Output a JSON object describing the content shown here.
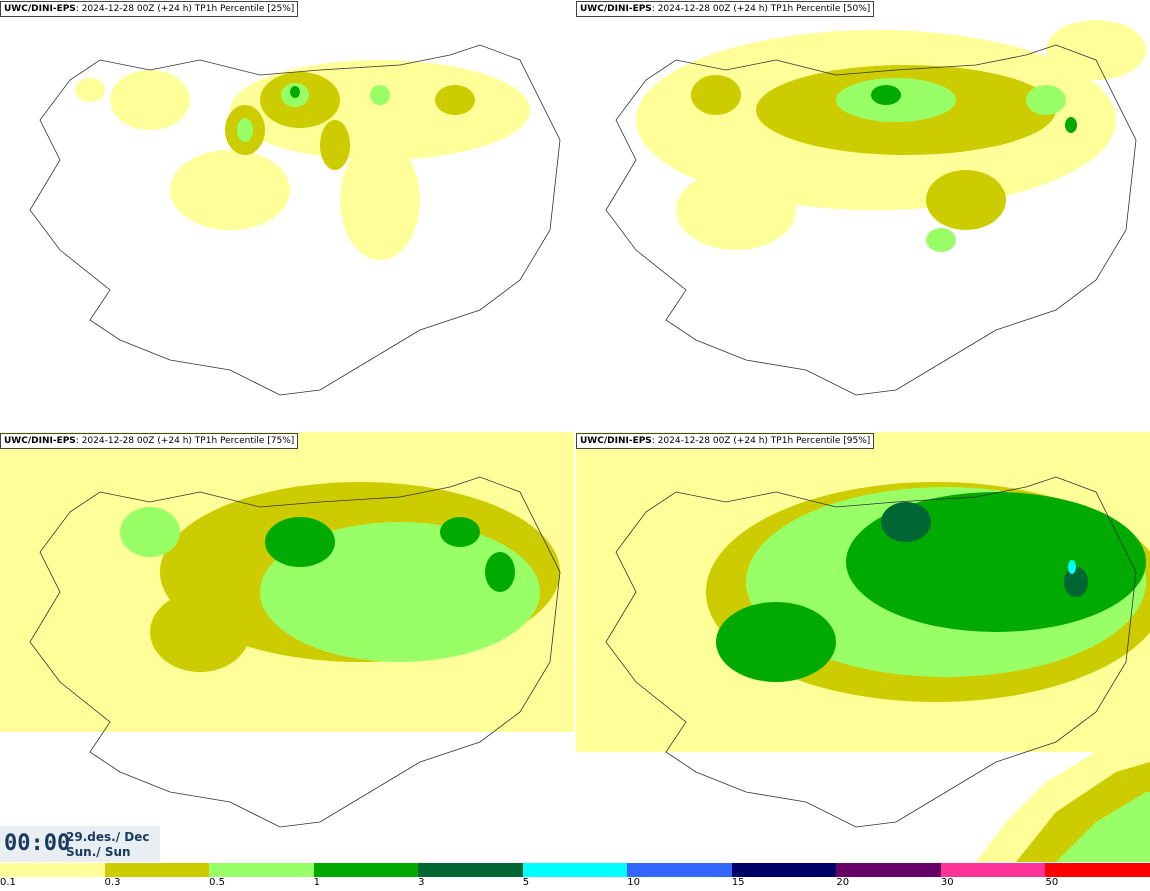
{
  "panels": [
    {
      "model": "UWC/DINI-EPS",
      "meta": ": 2024-12-28 00Z (+24 h)",
      "product": "TP1h Percentile [25%]"
    },
    {
      "model": "UWC/DINI-EPS",
      "meta": ": 2024-12-28 00Z (+24 h)",
      "product": "TP1h Percentile [50%]"
    },
    {
      "model": "UWC/DINI-EPS",
      "meta": ": 2024-12-28 00Z (+24 h)",
      "product": "TP1h Percentile [75%]"
    },
    {
      "model": "UWC/DINI-EPS",
      "meta": ": 2024-12-28 00Z (+24 h)",
      "product": "TP1h Percentile [95%]"
    }
  ],
  "valid_time": {
    "time": "00:00",
    "date_line1": "29.des./ Dec",
    "date_line2": "Sun./ Sun"
  },
  "legend": {
    "colors": [
      "#ffff99",
      "#cccc00",
      "#99ff66",
      "#00aa00",
      "#006633",
      "#00ffff",
      "#3366ff",
      "#000066",
      "#660066",
      "#ff3399",
      "#ff0000"
    ],
    "labels": [
      "0.1",
      "0.3",
      "0.5",
      "1",
      "3",
      "5",
      "10",
      "15",
      "20",
      "30",
      "50"
    ]
  }
}
